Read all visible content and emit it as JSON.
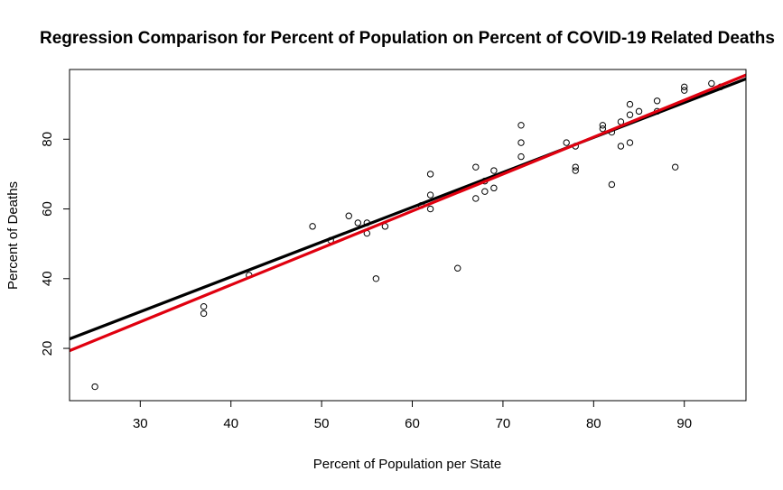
{
  "chart_data": {
    "type": "scatter",
    "title": "Regression Comparison for Percent of Population on Percent of COVID-19 Related Deaths",
    "xlabel": "Percent of Population per State",
    "ylabel": "Percent of Deaths",
    "xlim": [
      22.2,
      96.8
    ],
    "ylim": [
      5,
      100
    ],
    "x_ticks": [
      30,
      40,
      50,
      60,
      70,
      80,
      90
    ],
    "y_ticks": [
      20,
      40,
      60,
      80
    ],
    "points": [
      [
        25,
        9
      ],
      [
        37,
        32
      ],
      [
        37,
        30
      ],
      [
        42,
        41
      ],
      [
        49,
        55
      ],
      [
        51,
        51
      ],
      [
        53,
        58
      ],
      [
        54,
        56
      ],
      [
        55,
        56
      ],
      [
        55,
        53
      ],
      [
        56,
        40
      ],
      [
        57,
        55
      ],
      [
        61,
        61
      ],
      [
        62,
        70
      ],
      [
        62,
        64
      ],
      [
        62,
        60
      ],
      [
        65,
        43
      ],
      [
        67,
        72
      ],
      [
        67,
        63
      ],
      [
        68,
        68
      ],
      [
        68,
        65
      ],
      [
        69,
        71
      ],
      [
        69,
        66
      ],
      [
        72,
        84
      ],
      [
        72,
        79
      ],
      [
        72,
        75
      ],
      [
        77,
        79
      ],
      [
        78,
        78
      ],
      [
        78,
        72
      ],
      [
        78,
        71
      ],
      [
        81,
        84
      ],
      [
        81,
        83
      ],
      [
        82,
        82
      ],
      [
        82,
        67
      ],
      [
        83,
        85
      ],
      [
        83,
        78
      ],
      [
        84,
        90
      ],
      [
        84,
        87
      ],
      [
        84,
        79
      ],
      [
        85,
        88
      ],
      [
        87,
        91
      ],
      [
        87,
        88
      ],
      [
        89,
        72
      ],
      [
        90,
        95
      ],
      [
        90,
        94
      ],
      [
        93,
        96
      ],
      [
        94,
        95
      ]
    ],
    "series": [
      {
        "name": "regression-black",
        "color": "#000000",
        "intercept": 0.5,
        "slope": 1.0
      },
      {
        "name": "regression-red",
        "color": "#e0000f",
        "intercept": -4.2,
        "slope": 1.06
      }
    ]
  }
}
